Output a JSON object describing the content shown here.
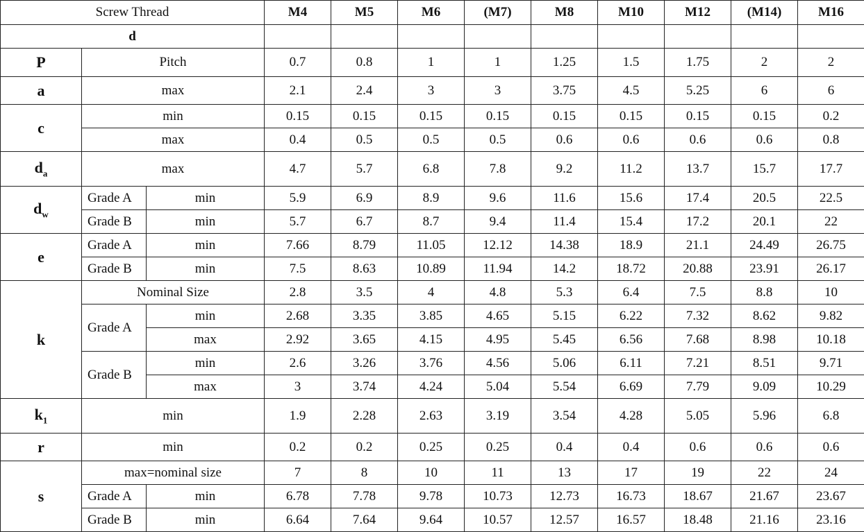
{
  "table": {
    "header": {
      "label": "Screw Thread",
      "columns": [
        "M4",
        "M5",
        "M6",
        "(M7)",
        "M8",
        "M10",
        "M12",
        "(M14)",
        "M16"
      ]
    },
    "d_row": {
      "label": "d"
    },
    "groups": [
      {
        "symbol": "P",
        "rows": [
          {
            "label": "Pitch",
            "values": [
              "0.7",
              "0.8",
              "1",
              "1",
              "1.25",
              "1.5",
              "1.75",
              "2",
              "2"
            ]
          }
        ]
      },
      {
        "symbol": "a",
        "rows": [
          {
            "label": "max",
            "values": [
              "2.1",
              "2.4",
              "3",
              "3",
              "3.75",
              "4.5",
              "5.25",
              "6",
              "6"
            ]
          }
        ]
      },
      {
        "symbol": "c",
        "rows": [
          {
            "label": "min",
            "values": [
              "0.15",
              "0.15",
              "0.15",
              "0.15",
              "0.15",
              "0.15",
              "0.15",
              "0.15",
              "0.2"
            ]
          },
          {
            "label": "max",
            "values": [
              "0.4",
              "0.5",
              "0.5",
              "0.5",
              "0.6",
              "0.6",
              "0.6",
              "0.6",
              "0.8"
            ]
          }
        ]
      },
      {
        "symbol": "d",
        "sub": "a",
        "rows": [
          {
            "label": "max",
            "values": [
              "4.7",
              "5.7",
              "6.8",
              "7.8",
              "9.2",
              "11.2",
              "13.7",
              "15.7",
              "17.7"
            ]
          }
        ]
      },
      {
        "symbol": "d",
        "sub": "w",
        "rows": [
          {
            "grade": "Grade A",
            "label": "min",
            "values": [
              "5.9",
              "6.9",
              "8.9",
              "9.6",
              "11.6",
              "15.6",
              "17.4",
              "20.5",
              "22.5"
            ]
          },
          {
            "grade": "Grade B",
            "label": "min",
            "values": [
              "5.7",
              "6.7",
              "8.7",
              "9.4",
              "11.4",
              "15.4",
              "17.2",
              "20.1",
              "22"
            ]
          }
        ]
      },
      {
        "symbol": "e",
        "rows": [
          {
            "grade": "Grade A",
            "label": "min",
            "values": [
              "7.66",
              "8.79",
              "11.05",
              "12.12",
              "14.38",
              "18.9",
              "21.1",
              "24.49",
              "26.75"
            ]
          },
          {
            "grade": "Grade B",
            "label": "min",
            "values": [
              "7.5",
              "8.63",
              "10.89",
              "11.94",
              "14.2",
              "18.72",
              "20.88",
              "23.91",
              "26.17"
            ]
          }
        ]
      },
      {
        "symbol": "k",
        "rows": [
          {
            "label": "Nominal Size",
            "values": [
              "2.8",
              "3.5",
              "4",
              "4.8",
              "5.3",
              "6.4",
              "7.5",
              "8.8",
              "10"
            ]
          },
          {
            "grade": "Grade A",
            "label": "min",
            "values": [
              "2.68",
              "3.35",
              "3.85",
              "4.65",
              "5.15",
              "6.22",
              "7.32",
              "8.62",
              "9.82"
            ]
          },
          {
            "label": "max",
            "values": [
              "2.92",
              "3.65",
              "4.15",
              "4.95",
              "5.45",
              "6.56",
              "7.68",
              "8.98",
              "10.18"
            ]
          },
          {
            "grade": "Grade B",
            "label": "min",
            "values": [
              "2.6",
              "3.26",
              "3.76",
              "4.56",
              "5.06",
              "6.11",
              "7.21",
              "8.51",
              "9.71"
            ]
          },
          {
            "label": "max",
            "values": [
              "3",
              "3.74",
              "4.24",
              "5.04",
              "5.54",
              "6.69",
              "7.79",
              "9.09",
              "10.29"
            ]
          }
        ]
      },
      {
        "symbol": "k",
        "sub": "1",
        "rows": [
          {
            "label": "min",
            "values": [
              "1.9",
              "2.28",
              "2.63",
              "3.19",
              "3.54",
              "4.28",
              "5.05",
              "5.96",
              "6.8"
            ]
          }
        ]
      },
      {
        "symbol": "r",
        "rows": [
          {
            "label": "min",
            "values": [
              "0.2",
              "0.2",
              "0.25",
              "0.25",
              "0.4",
              "0.4",
              "0.6",
              "0.6",
              "0.6"
            ]
          }
        ]
      },
      {
        "symbol": "s",
        "rows": [
          {
            "label": "max=nominal size",
            "values": [
              "7",
              "8",
              "10",
              "11",
              "13",
              "17",
              "19",
              "22",
              "24"
            ]
          },
          {
            "grade": "Grade A",
            "label": "min",
            "values": [
              "6.78",
              "7.78",
              "9.78",
              "10.73",
              "12.73",
              "16.73",
              "18.67",
              "21.67",
              "23.67"
            ]
          },
          {
            "grade": "Grade B",
            "label": "min",
            "values": [
              "6.64",
              "7.64",
              "9.64",
              "10.57",
              "12.57",
              "16.57",
              "18.48",
              "21.16",
              "23.16"
            ]
          }
        ]
      }
    ]
  }
}
